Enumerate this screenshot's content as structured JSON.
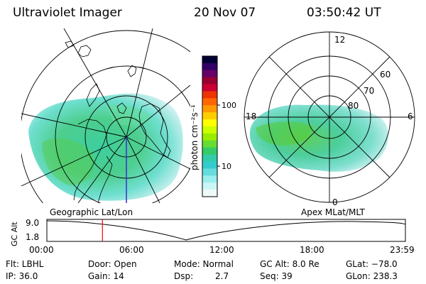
{
  "header": {
    "title": "Ultraviolet Imager",
    "date": "20 Nov 07",
    "time": "03:50:42 UT"
  },
  "colorbar": {
    "label": "photon cm⁻²s⁻¹",
    "ticks": [
      "100",
      "10"
    ],
    "colors": [
      "#000033",
      "#330066",
      "#660066",
      "#990033",
      "#cc0033",
      "#ee3300",
      "#ff6600",
      "#ff9900",
      "#ffcc00",
      "#ffff00",
      "#ccff00",
      "#99ee00",
      "#66dd33",
      "#33cc66",
      "#33ccaa",
      "#33cccc",
      "#66dddd",
      "#99eeee",
      "#ccf6f6",
      "#eefafa"
    ]
  },
  "left_map": {
    "caption": "Geographic Lat/Lon"
  },
  "right_map": {
    "caption": "Apex MLat/MLT",
    "mlt_labels": [
      "12",
      "18",
      "6",
      "0"
    ],
    "lat_labels": [
      "60",
      "70",
      "80"
    ]
  },
  "altitude_plot": {
    "ylabel": "GC Alt",
    "yticks": [
      "9.0",
      "1.8"
    ],
    "xticks": [
      "00:00",
      "06:00",
      "12:00",
      "18:00",
      "23:59"
    ],
    "current_time_fraction": 0.155
  },
  "info": {
    "filter": "Flt: LBHL",
    "ip": "IP: 36.0",
    "door": "Door: Open",
    "gain": "Gain: 14",
    "mode": "Mode: Normal",
    "dsp_label": "Dsp:",
    "dsp_value": "2.7",
    "gc_alt": "GC Alt: 8.0 Re",
    "seq": "Seq: 39",
    "glat": "GLat: −78.0",
    "glon": "GLon: 238.3"
  },
  "accent": {
    "current_marker": "#ff0000",
    "meridian": "#3333cc"
  }
}
